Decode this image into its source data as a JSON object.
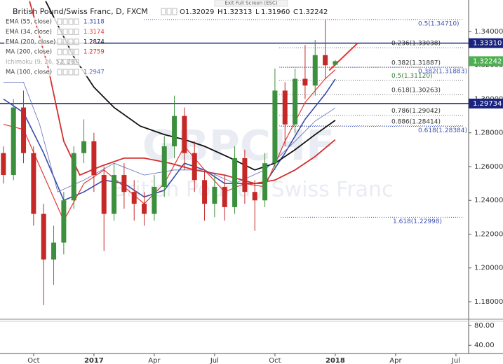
{
  "chart_data": {
    "type": "candlestick",
    "title": "British Pound/Swiss Franc, D, FXCM",
    "ohlc_header": [
      {
        "key": "O",
        "value": "1.32029"
      },
      {
        "key": "H",
        "value": "1.32313"
      },
      {
        "key": "L",
        "value": "1.31960"
      },
      {
        "key": "C",
        "value": "1.32242"
      }
    ],
    "watermark": [
      "GBPCHF",
      "British Pound / Swiss Franc"
    ],
    "tooltip": "Exit Full Screen (ESC)",
    "up_color": "#3c8f3c",
    "down_color": "#c62828",
    "x": [
      -1.5,
      -1.0,
      -0.5,
      0.0,
      0.5,
      1.0,
      1.5,
      2.0,
      2.5,
      3.0,
      3.5,
      4.0,
      4.5,
      5.0,
      5.5,
      6.0,
      6.5,
      7.0,
      7.5,
      8.0,
      8.5,
      9.0,
      9.5,
      10.0,
      10.5,
      11.0,
      11.5,
      12.0,
      12.5,
      13.0,
      13.5,
      14.0,
      14.5,
      15.0
    ],
    "open": [
      1.268,
      1.255,
      1.295,
      1.268,
      1.232,
      1.205,
      1.215,
      1.24,
      1.268,
      1.275,
      1.255,
      1.232,
      1.255,
      1.245,
      1.238,
      1.232,
      1.248,
      1.272,
      1.29,
      1.268,
      1.252,
      1.238,
      1.248,
      1.236,
      1.265,
      1.245,
      1.24,
      1.262,
      1.305,
      1.285,
      1.312,
      1.308,
      1.326,
      1.32029
    ],
    "high": [
      1.272,
      1.3,
      1.305,
      1.272,
      1.238,
      1.225,
      1.245,
      1.272,
      1.288,
      1.28,
      1.26,
      1.262,
      1.262,
      1.252,
      1.245,
      1.255,
      1.278,
      1.302,
      1.295,
      1.275,
      1.258,
      1.255,
      1.255,
      1.272,
      1.27,
      1.252,
      1.268,
      1.318,
      1.31,
      1.318,
      1.332,
      1.335,
      1.347,
      1.32313
    ],
    "low": [
      1.25,
      1.252,
      1.262,
      1.225,
      1.178,
      1.19,
      1.208,
      1.235,
      1.262,
      1.245,
      1.21,
      1.228,
      1.235,
      1.228,
      1.225,
      1.228,
      1.242,
      1.265,
      1.258,
      1.245,
      1.228,
      1.23,
      1.228,
      1.232,
      1.238,
      1.222,
      1.236,
      1.258,
      1.272,
      1.28,
      1.3,
      1.302,
      1.312,
      1.3196
    ],
    "close": [
      1.255,
      1.295,
      1.268,
      1.232,
      1.205,
      1.215,
      1.24,
      1.268,
      1.275,
      1.255,
      1.232,
      1.255,
      1.245,
      1.238,
      1.232,
      1.248,
      1.272,
      1.29,
      1.268,
      1.252,
      1.238,
      1.248,
      1.236,
      1.265,
      1.245,
      1.24,
      1.262,
      1.305,
      1.285,
      1.312,
      1.308,
      1.326,
      1.32,
      1.32242
    ],
    "indicators": [
      {
        "name": "EMA (55, close)",
        "color": "#3949ab",
        "width": 1.6,
        "last": 1.3118,
        "x": [
          -1.5,
          -0.5,
          0.5,
          1.5,
          2.5,
          3.5,
          4.5,
          5.5,
          6.5,
          7.5,
          8.5,
          9.5,
          10.5,
          11.5,
          12.5,
          13.5,
          14.5,
          15
        ],
        "values": [
          1.3,
          1.292,
          1.268,
          1.24,
          1.245,
          1.252,
          1.25,
          1.242,
          1.246,
          1.262,
          1.258,
          1.25,
          1.25,
          1.25,
          1.268,
          1.288,
          1.303,
          1.3118
        ]
      },
      {
        "name": "EMA (34, close)",
        "color": "#e53935",
        "width": 1.2,
        "last": 1.3174,
        "x": [
          -1.5,
          -0.5,
          0.5,
          1.5,
          2.5,
          3.5,
          4.5,
          5.5,
          6.5,
          7.5,
          8.5,
          9.5,
          10.5,
          11.5,
          12.5,
          13.5,
          14.5,
          15
        ],
        "values": [
          1.285,
          1.282,
          1.255,
          1.228,
          1.25,
          1.258,
          1.248,
          1.238,
          1.25,
          1.272,
          1.258,
          1.245,
          1.25,
          1.248,
          1.275,
          1.298,
          1.312,
          1.3174
        ]
      },
      {
        "name": "EMA (200, close)",
        "color": "#111111",
        "width": 1.8,
        "last": 1.2874,
        "x": [
          0.6,
          2.0,
          3.0,
          4.0,
          5.3,
          6.5,
          7.5,
          8.5,
          9.8,
          11.0,
          12.0,
          13.0,
          14.0,
          15
        ],
        "values": [
          1.358,
          1.325,
          1.307,
          1.295,
          1.284,
          1.279,
          1.276,
          1.272,
          1.265,
          1.258,
          1.262,
          1.27,
          1.279,
          1.2874
        ]
      },
      {
        "name": "MA (200, close)",
        "color": "#d32f2f",
        "width": 1.8,
        "last": 1.2759,
        "x": [
          -0.2,
          0.7,
          1.5,
          2.3,
          3.3,
          4.5,
          5.5,
          6.8,
          8.0,
          9.5,
          11.0,
          12.0,
          13.0,
          14.0,
          15
        ],
        "values": [
          1.358,
          1.32,
          1.275,
          1.255,
          1.26,
          1.265,
          1.265,
          1.262,
          1.258,
          1.255,
          1.25,
          1.252,
          1.258,
          1.266,
          1.2759
        ]
      },
      {
        "name": "Ichimoku (9, 26, 52, 26)",
        "color": "#9aa5b8"
      },
      {
        "name": "MA (100, close)",
        "color": "#5c6bc0",
        "width": 0.8,
        "last": 1.2947,
        "x": [
          -1.5,
          -0.5,
          0.3,
          1.2,
          2.5,
          4.0,
          5.5,
          7.0,
          8.5,
          10.0,
          11.5,
          13.0,
          14.0,
          15
        ],
        "values": [
          1.31,
          1.31,
          1.285,
          1.245,
          1.252,
          1.262,
          1.255,
          1.258,
          1.258,
          1.25,
          1.258,
          1.275,
          1.287,
          1.2947
        ]
      }
    ],
    "trendline": {
      "color": "#e53935",
      "x": [
        14.7,
        16.1
      ],
      "values": [
        1.317,
        1.333
      ]
    },
    "horizontal_lines": {
      "color": "#1a237e",
      "levels": [
        {
          "value": 1.3331,
          "label": "1.33310"
        },
        {
          "value": 1.29734,
          "label": "1.29734"
        }
      ]
    },
    "last_price": {
      "value": 1.32242,
      "label": "1.32242",
      "color": "#4caf50"
    },
    "fib_black": [
      {
        "value": 1.33038,
        "label": "0.236(1.33038)",
        "color": "#333333"
      },
      {
        "value": 1.31887,
        "label": "0.382(1.31887)",
        "color": "#333333"
      },
      {
        "value": 1.3112,
        "label": "0.5(1.31120)",
        "color": "#2e7d32"
      },
      {
        "value": 1.30263,
        "label": "0.618(1.30263)",
        "color": "#333333"
      },
      {
        "value": 1.29042,
        "label": "0.786(1.29042)",
        "color": "#333333"
      },
      {
        "value": 1.28414,
        "label": "0.886(1.28414)",
        "color": "#333333"
      }
    ],
    "fib_blue": [
      {
        "value": 1.3471,
        "label": "0.5(1.34710)"
      },
      {
        "value": 1.31883,
        "label": "0.382(1.31883)"
      },
      {
        "value": 1.28384,
        "label": "0.618(1.28384)"
      },
      {
        "value": 1.22998,
        "label": "1.618(1.22998)"
      }
    ],
    "fib_blue_color": "#3f51b5",
    "xlim": [
      -1.67,
      21.63
    ],
    "xticks": [
      {
        "value": 0,
        "label": "Oct"
      },
      {
        "value": 3,
        "label": "2017"
      },
      {
        "value": 6,
        "label": "Apr"
      },
      {
        "value": 9,
        "label": "Jul"
      },
      {
        "value": 12,
        "label": "Oct"
      },
      {
        "value": 15,
        "label": "2018"
      },
      {
        "value": 18,
        "label": "Apr"
      },
      {
        "value": 21,
        "label": "Jul"
      }
    ],
    "ylim": [
      1.17005,
      1.35865
    ],
    "yticks": [
      {
        "value": 1.18,
        "label": "1.18000"
      },
      {
        "value": 1.2,
        "label": "1.20000"
      },
      {
        "value": 1.22,
        "label": "1.22000"
      },
      {
        "value": 1.24,
        "label": "1.24000"
      },
      {
        "value": 1.26,
        "label": "1.26000"
      },
      {
        "value": 1.28,
        "label": "1.28000"
      },
      {
        "value": 1.3,
        "label": "1.30000"
      },
      {
        "value": 1.32,
        "label": "1.32000"
      },
      {
        "value": 1.34,
        "label": "1.34000"
      }
    ],
    "grid": false,
    "lower_pane": {
      "ylim": [
        23.4,
        88.3
      ],
      "yticks": [
        {
          "value": 80,
          "label": "80.00"
        },
        {
          "value": 40,
          "label": "40.00"
        }
      ]
    }
  }
}
